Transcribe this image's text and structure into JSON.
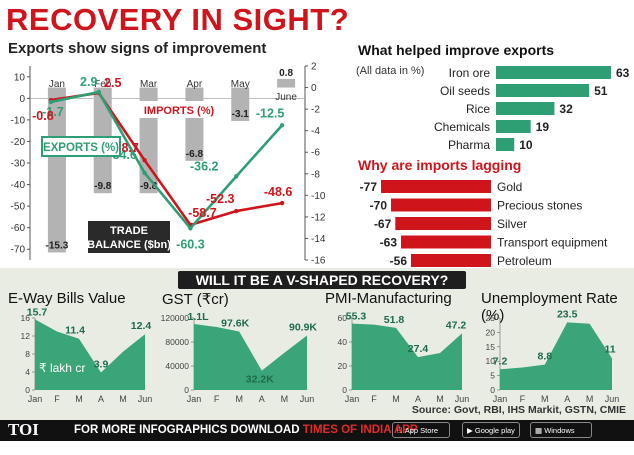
{
  "headline": "RECOVERY IN SIGHT?",
  "exports_subtitle": "Exports show signs of improvement",
  "colors": {
    "red": "#d0141c",
    "green": "#2e9e74",
    "gray": "#b3b3b3",
    "panel": "#e9ece3",
    "mini_fill": "#3aa577"
  },
  "main_chart": {
    "months": [
      "Jan",
      "Feb",
      "Mar",
      "Apr",
      "May",
      "June"
    ],
    "left_axis": {
      "ticks": [
        10,
        0,
        -10,
        -20,
        -30,
        -40,
        -50,
        -60,
        -70
      ],
      "ylim": [
        -75,
        15
      ]
    },
    "right_axis": {
      "ticks": [
        2,
        0,
        -2,
        -4,
        -6,
        -8,
        -10,
        -12,
        -14,
        -16
      ],
      "ylim": [
        -16,
        2
      ]
    },
    "trade_balance": {
      "name": "TRADE BALANCE ($bn)",
      "values": [
        -15.3,
        -9.8,
        -9.8,
        -6.8,
        -3.1,
        0.8
      ],
      "labels": [
        "-15.3",
        "-9.8",
        "-9.8",
        "-6.8",
        "-3.1",
        "0.8"
      ]
    },
    "exports": {
      "name": "EXPORTS (%)",
      "values": [
        -1.7,
        2.9,
        -34.6,
        -60.3,
        -36.2,
        -12.5
      ],
      "labels": [
        "-1.7",
        "2.9",
        "-34.6",
        "-60.3",
        "-36.2",
        "-12.5"
      ]
    },
    "imports": {
      "name": "IMPORTS (%)",
      "values": [
        -0.8,
        2.5,
        -28.7,
        -58.7,
        -52.3,
        -48.6
      ],
      "labels": [
        "-0.8",
        "2.5",
        "-28.7",
        "-58.7",
        "-52.3",
        "-48.6"
      ]
    },
    "trade_label_line1": "TRADE",
    "trade_label_line2": "BALANCE ($bn)"
  },
  "helped": {
    "title": "What helped improve exports",
    "note": "(All data in %)",
    "items": [
      {
        "label": "Iron ore",
        "value": 63
      },
      {
        "label": "Oil seeds",
        "value": 51
      },
      {
        "label": "Rice",
        "value": 32
      },
      {
        "label": "Chemicals",
        "value": 19
      },
      {
        "label": "Pharma",
        "value": 10
      }
    ]
  },
  "lagging": {
    "title": "Why are imports lagging",
    "items": [
      {
        "label": "Gold",
        "value": -77,
        "text": "-77"
      },
      {
        "label": "Precious stones",
        "value": -70,
        "text": "-70"
      },
      {
        "label": "Silver",
        "value": -67,
        "text": "-67"
      },
      {
        "label": "Transport equipment",
        "value": -63,
        "text": "-63"
      },
      {
        "label": "Petroleum",
        "value": -56,
        "text": "-56"
      }
    ]
  },
  "vshape_title": "WILL IT BE A V-SHAPED RECOVERY?",
  "mini_months": [
    "Jan",
    "F",
    "M",
    "A",
    "M",
    "Jun"
  ],
  "chart_data": [
    {
      "type": "bar+line",
      "title": "Exports show signs of improvement",
      "categories": [
        "Jan",
        "Feb",
        "Mar",
        "Apr",
        "May",
        "June"
      ],
      "series": [
        {
          "name": "TRADE BALANCE ($bn)",
          "values": [
            -15.3,
            -9.8,
            -9.8,
            -6.8,
            -3.1,
            0.8
          ],
          "axis": "right"
        },
        {
          "name": "EXPORTS (%)",
          "values": [
            -1.7,
            2.9,
            -34.6,
            -60.3,
            -36.2,
            -12.5
          ],
          "axis": "left"
        },
        {
          "name": "IMPORTS (%)",
          "values": [
            -0.8,
            2.5,
            -28.7,
            -58.7,
            -52.3,
            -48.6
          ],
          "axis": "left"
        }
      ]
    },
    {
      "type": "bar",
      "title": "What helped improve exports",
      "categories": [
        "Iron ore",
        "Oil seeds",
        "Rice",
        "Chemicals",
        "Pharma"
      ],
      "values": [
        63,
        51,
        32,
        19,
        10
      ]
    },
    {
      "type": "bar",
      "title": "Why are imports lagging",
      "categories": [
        "Gold",
        "Precious stones",
        "Silver",
        "Transport equipment",
        "Petroleum"
      ],
      "values": [
        -77,
        -70,
        -67,
        -63,
        -56
      ]
    },
    {
      "type": "area",
      "title": "E-Way Bills Value",
      "categories": [
        "Jan",
        "F",
        "M",
        "A",
        "M",
        "Jun"
      ],
      "values": [
        15.7,
        13.0,
        11.4,
        3.9,
        8.5,
        12.4
      ],
      "labels": [
        "15.7",
        null,
        "11.4",
        "3.9",
        null,
        "12.4"
      ],
      "unit_note": "₹ lakh cr",
      "ylim": [
        0,
        16
      ],
      "yticks": [
        "16",
        "12",
        "8",
        "4",
        "0"
      ]
    },
    {
      "type": "area",
      "title": "GST (₹cr)",
      "categories": [
        "Jan",
        "F",
        "M",
        "A",
        "M",
        "Jun"
      ],
      "values": [
        110000,
        105000,
        97600,
        32200,
        62000,
        90900
      ],
      "labels": [
        "1.1L",
        null,
        "97.6K",
        "32.2K",
        null,
        "90.9K"
      ],
      "ylim": [
        0,
        120000
      ],
      "yticks": [
        "120000",
        "80000",
        "40000",
        "0"
      ]
    },
    {
      "type": "area",
      "title": "PMI-Manufacturing",
      "categories": [
        "Jan",
        "F",
        "M",
        "A",
        "M",
        "Jun"
      ],
      "values": [
        55.3,
        54.5,
        51.8,
        27.4,
        30.8,
        47.2
      ],
      "labels": [
        "55.3",
        null,
        "51.8",
        "27.4",
        null,
        "47.2"
      ],
      "ylim": [
        0,
        60
      ],
      "yticks": [
        "60",
        "40",
        "20",
        "0"
      ]
    },
    {
      "type": "area",
      "title": "Unemployment Rate (%)",
      "categories": [
        "Jan",
        "F",
        "M",
        "A",
        "M",
        "Jun"
      ],
      "values": [
        7.2,
        7.8,
        8.8,
        23.5,
        23.0,
        11
      ],
      "labels": [
        "7.2",
        null,
        "8.8",
        "23.5",
        null,
        "11"
      ],
      "ylim": [
        0,
        25
      ],
      "yticks": [
        "25",
        "20",
        "15",
        "10",
        "5",
        "0"
      ]
    }
  ],
  "source": "Source: Govt, RBI, IHS Markit, GSTN, CMIE",
  "footer": {
    "toi": "TOI",
    "promo_prefix": "FOR MORE  INFOGRAPHICS DOWNLOAD",
    "promo_app": "TIMES OF INDIA APP",
    "app_store": "App Store",
    "google_play": "Google play",
    "windows_phone": "Windows Phone"
  }
}
